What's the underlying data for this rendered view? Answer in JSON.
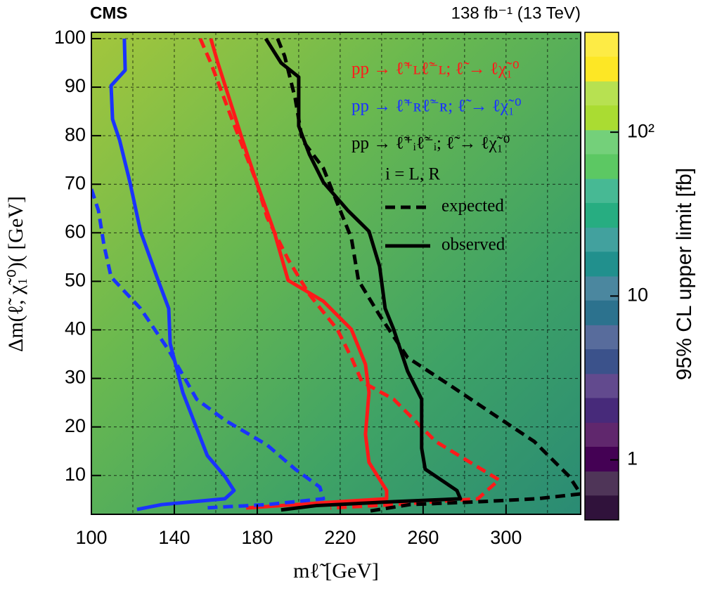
{
  "chart_data": {
    "type": "line",
    "experiment": "CMS",
    "lumi_label": "138 fb⁻¹ (13 TeV)",
    "x_label": "mℓ̃ [GeV]",
    "y_label": "Δm(ℓ̃, χ̃₁⁰)( [GeV]",
    "z_label": "95% CL upper limit [fb]",
    "xlim": [
      100,
      336
    ],
    "ylim": [
      2,
      101.3
    ],
    "xticks": [
      100,
      140,
      180,
      220,
      260,
      300
    ],
    "xgrid": [
      120,
      140,
      160,
      180,
      200,
      220,
      240,
      260,
      280,
      300,
      320
    ],
    "yticks": [
      10,
      20,
      30,
      40,
      50,
      60,
      70,
      80,
      90,
      100
    ],
    "grid": true,
    "zlim": [
      0.43,
      407
    ],
    "zlog": true,
    "zticks": [
      1,
      10,
      {
        "value": 100,
        "label": "10²"
      }
    ],
    "colormap": [
      "#30123b",
      "#440154",
      "#472a7a",
      "#3b528b",
      "#2c728e",
      "#21908d",
      "#27ad81",
      "#5cc863",
      "#aadc32",
      "#fde725"
    ],
    "annotation": "i = L, R",
    "line_styles": [
      "expected",
      "observed"
    ],
    "series": [
      {
        "name": "pp → ℓ̃⁺ʟℓ̃⁻ʟ; ℓ̃ → ℓχ̃₁⁰",
        "color": "#ff1a1a",
        "observed": {
          "x": [
            157.6,
            161,
            172.9,
            179.7,
            188.1,
            194.9,
            211.9,
            225.4,
            232.2,
            233.9,
            232.2,
            233.9,
            242.4,
            242.4,
            208.5,
            174.6
          ],
          "y": [
            100,
            95,
            79.1,
            70.4,
            60.3,
            50.2,
            45.9,
            40.1,
            32.9,
            27.1,
            18.5,
            12.7,
            6.9,
            5.2,
            4.3,
            3.3
          ]
        },
        "expected": {
          "x": [
            152.5,
            157.6,
            167.8,
            179.7,
            184.7,
            194.9,
            205.1,
            218.6,
            225.4,
            230.5,
            245.8,
            266.1,
            296.6,
            286.4,
            245.8,
            215.3
          ],
          "y": [
            100,
            95,
            83.4,
            70.4,
            63.2,
            54.5,
            47.3,
            40.1,
            34.3,
            29.3,
            25.7,
            17,
            9.1,
            5.2,
            4,
            3.3
          ]
        }
      },
      {
        "name": "pp → ℓ̃⁺ʀℓ̃⁻ʀ; ℓ̃ → ℓχ̃₁⁰",
        "color": "#1a33ff",
        "observed": {
          "x": [
            115.9,
            116.3,
            109.5,
            110.2,
            113.6,
            118.6,
            123.7,
            132.2,
            137.3,
            138,
            144.1,
            155.9,
            164.4,
            168.8,
            164.4,
            133.9,
            122
          ],
          "y": [
            100,
            93.5,
            90.3,
            83.4,
            79.1,
            70.4,
            60.3,
            50.2,
            44.4,
            37.2,
            27.1,
            14.1,
            9.8,
            6.9,
            5.2,
            4,
            3
          ]
        },
        "expected": {
          "x": [
            100,
            103.4,
            106.1,
            109.5,
            123.7,
            137.3,
            150.8,
            164.4,
            184.7,
            198.3,
            210.2,
            211.9,
            184.7,
            154.2
          ],
          "y": [
            69,
            64.6,
            57.4,
            50.9,
            44.4,
            35.8,
            25.7,
            21.4,
            16.3,
            11.3,
            7.6,
            5.2,
            4,
            3.3
          ]
        }
      },
      {
        "name": "pp → ℓ̃⁺ᵢℓ̃⁻ᵢ; ℓ̃ → ℓχ̃₁⁰",
        "color": "#000000",
        "observed": {
          "x": [
            184.1,
            191.5,
            200,
            200,
            205.1,
            211.9,
            223.7,
            233.9,
            239,
            241.7,
            245.8,
            252.5,
            259.3,
            259.3,
            261,
            276.3,
            278,
            245.8,
            208.5,
            191.5
          ],
          "y": [
            100,
            95,
            92.1,
            82,
            76.2,
            70.4,
            64.6,
            60.3,
            53.1,
            44.4,
            40.1,
            31.5,
            25.7,
            15.6,
            11.3,
            6.9,
            5.2,
            4.6,
            3.8,
            2.9
          ]
        },
        "expected": {
          "x": [
            189.8,
            193.2,
            198.3,
            201.7,
            211.9,
            218.6,
            225.4,
            228.8,
            239,
            252.5,
            272.9,
            293.2,
            313.6,
            330.5,
            336,
            314.7,
            287.6,
            253.6,
            233.2
          ],
          "y": [
            100,
            96.4,
            87.7,
            79.1,
            73.3,
            66.1,
            58.9,
            50.2,
            43,
            34.3,
            28.6,
            22.8,
            17,
            9.8,
            6.2,
            5.2,
            4.6,
            4,
            2.6
          ]
        }
      }
    ]
  }
}
